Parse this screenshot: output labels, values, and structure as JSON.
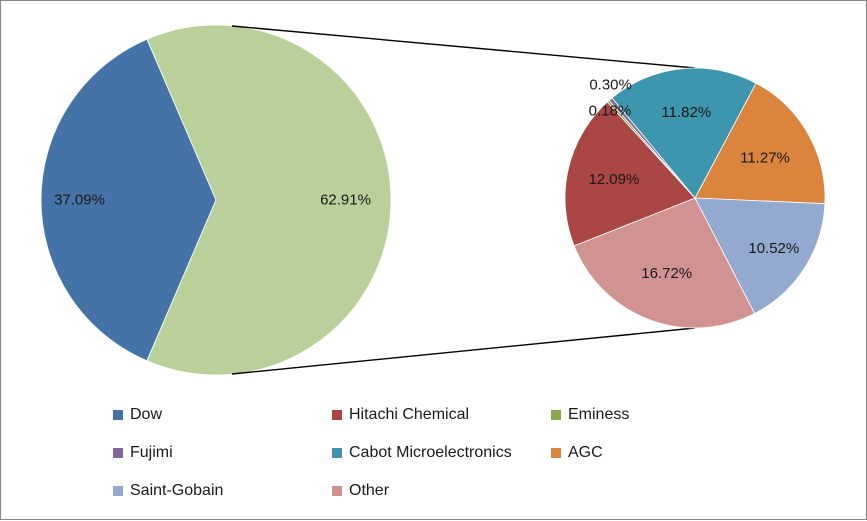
{
  "chart_data": {
    "type": "bar-of-pie",
    "title": "",
    "main_pie": {
      "slices": [
        {
          "name": "Dow",
          "value": 37.09,
          "label": "37.09%",
          "color": "#4572A7"
        },
        {
          "name": "Other (combined)",
          "value": 62.91,
          "label": "62.91%",
          "color": "#B9D09B"
        }
      ]
    },
    "secondary_pie": {
      "slices": [
        {
          "name": "AGC",
          "value": 11.27,
          "label": "11.27%",
          "color": "#DB843D"
        },
        {
          "name": "Saint-Gobain",
          "value": 10.52,
          "label": "10.52%",
          "color": "#93A9CF"
        },
        {
          "name": "Other",
          "value": 16.72,
          "label": "16.72%",
          "color": "#D19392"
        },
        {
          "name": "Hitachi Chemical",
          "value": 12.09,
          "label": "12.09%",
          "color": "#AA4643"
        },
        {
          "name": "Eminess",
          "value": 0.18,
          "label": "0.18%",
          "color": "#89A54E"
        },
        {
          "name": "Fujimi",
          "value": 0.3,
          "label": "0.30%",
          "color": "#80699B"
        },
        {
          "name": "Cabot Microelectronics",
          "value": 11.82,
          "label": "11.82%",
          "color": "#3D96AE"
        }
      ]
    },
    "legend": {
      "placement": "bottom",
      "items": [
        {
          "name": "Dow",
          "color": "#4572A7"
        },
        {
          "name": "Hitachi Chemical",
          "color": "#AA4643"
        },
        {
          "name": "Eminess",
          "color": "#89A54E"
        },
        {
          "name": "Fujimi",
          "color": "#80699B"
        },
        {
          "name": "Cabot Microelectronics",
          "color": "#3D96AE"
        },
        {
          "name": "AGC",
          "color": "#DB843D"
        },
        {
          "name": "Saint-Gobain",
          "color": "#93A9CF"
        },
        {
          "name": "Other",
          "color": "#D19392"
        }
      ]
    }
  }
}
